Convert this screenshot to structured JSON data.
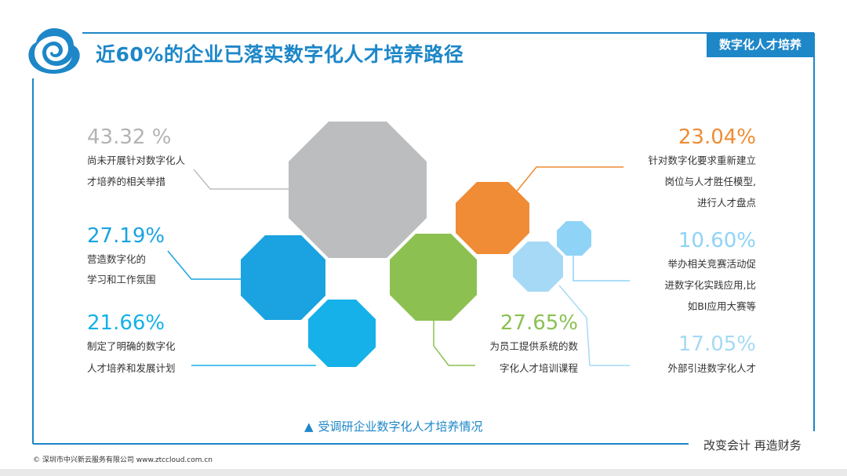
{
  "header": {
    "title": "近60%的企业已落实数字化人才培养路径",
    "tag": "数字化人才培养"
  },
  "colors": {
    "brand": "#1d87c8",
    "gray": "#bcbdbf",
    "blue": "#1aa3e0",
    "light_blue": "#15b1e8",
    "orange": "#ef8c35",
    "green": "#8cc152",
    "pale_blue": "#a6d9f5",
    "paler_blue": "#8fd3f7"
  },
  "stats": [
    {
      "pct": "43.32 %",
      "lines": [
        "尚未开展针对数字化人",
        "才培养的相关举措"
      ]
    },
    {
      "pct": "27.19%",
      "lines": [
        "营造数字化的",
        "学习和工作氛围"
      ]
    },
    {
      "pct": "21.66%",
      "lines": [
        "制定了明确的数字化",
        "人才培养和发展计划"
      ]
    },
    {
      "pct": "23.04%",
      "lines": [
        "针对数字化要求重新建立",
        "岗位与人才胜任模型,",
        "进行人才盘点"
      ]
    },
    {
      "pct": "10.60%",
      "lines": [
        "举办相关竞赛活动促",
        "进数字化实践应用,比",
        "如BI应用大赛等"
      ]
    },
    {
      "pct": "27.65%",
      "lines": [
        "为员工提供系统的数",
        "字化人才培训课程"
      ]
    },
    {
      "pct": "17.05%",
      "lines": [
        "外部引进数字化人才"
      ]
    }
  ],
  "caption": "受调研企业数字化人才培养情况",
  "caption_icon": "triangle-up-icon",
  "slogan": "改变会计  再造财务",
  "footer": "© 深圳市中兴新云服务有限公司  www.ztccloud.com.cn"
}
